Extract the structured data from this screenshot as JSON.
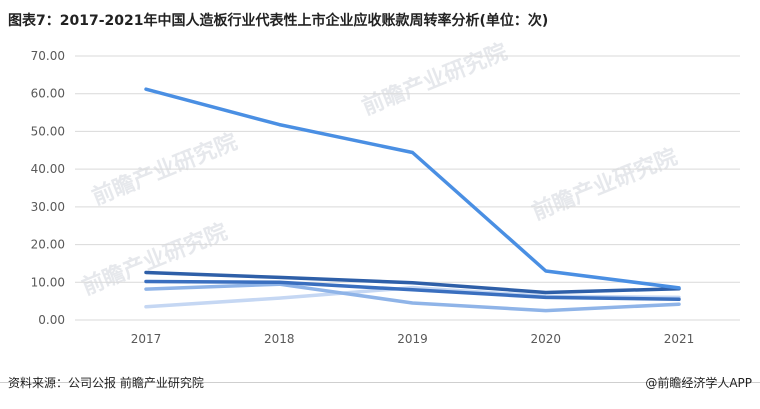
{
  "title": "图表7：2017-2021年中国人造板行业代表性上市企业应收账款周转率分析(单位：次)",
  "source": "资料来源：公司公报 前瞻产业研究院",
  "brand": "@前瞻经济学人APP",
  "watermark": "前瞻产业研究院",
  "chart_data": {
    "type": "line",
    "title": "图表7：2017-2021年中国人造板行业代表性上市企业应收账款周转率分析(单位：次)",
    "xlabel": "",
    "ylabel": "",
    "categories": [
      "2017",
      "2018",
      "2019",
      "2020",
      "2021"
    ],
    "ylim": [
      0,
      70
    ],
    "yticks": [
      "0.00",
      "10.00",
      "20.00",
      "30.00",
      "40.00",
      "50.00",
      "60.00",
      "70.00"
    ],
    "grid": true,
    "legend": "none",
    "series": [
      {
        "values": [
          61.2,
          51.8,
          44.4,
          13.0,
          8.5
        ],
        "color": "#4a8fe3"
      },
      {
        "values": [
          12.6,
          11.3,
          9.9,
          7.3,
          8.3
        ],
        "color": "#2e5fa8"
      },
      {
        "values": [
          10.2,
          10.0,
          8.0,
          6.0,
          5.5
        ],
        "color": "#3a6fbf"
      },
      {
        "values": [
          8.2,
          9.5,
          4.5,
          2.5,
          4.2
        ],
        "color": "#8fb4e8"
      },
      {
        "values": [
          3.5,
          5.8,
          8.6,
          6.3,
          6.0
        ],
        "color": "#c5d7f3"
      }
    ]
  }
}
